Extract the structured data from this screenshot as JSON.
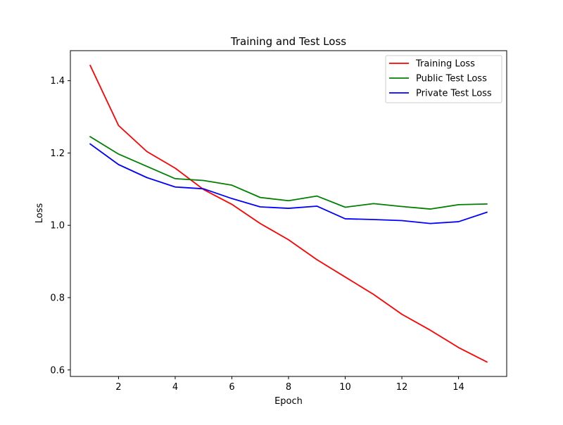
{
  "chart_data": {
    "type": "line",
    "title": "Training and Test Loss",
    "xlabel": "Epoch",
    "ylabel": "Loss",
    "x": [
      1,
      2,
      3,
      4,
      5,
      6,
      7,
      8,
      9,
      10,
      11,
      12,
      13,
      14,
      15
    ],
    "xlim": [
      0.3,
      15.7
    ],
    "ylim": [
      0.582,
      1.483
    ],
    "xticks": [
      2,
      4,
      6,
      8,
      10,
      12,
      14
    ],
    "yticks": [
      0.6,
      0.8,
      1.0,
      1.2,
      1.4
    ],
    "xtick_labels": [
      "2",
      "4",
      "6",
      "8",
      "10",
      "12",
      "14"
    ],
    "ytick_labels": [
      "0.6",
      "0.8",
      "1.0",
      "1.2",
      "1.4"
    ],
    "grid": false,
    "legend_position": "upper right",
    "series": [
      {
        "name": "Training Loss",
        "color": "#ff0000",
        "values": [
          1.442,
          1.276,
          1.204,
          1.158,
          1.099,
          1.058,
          1.005,
          0.96,
          0.905,
          0.857,
          0.809,
          0.754,
          0.71,
          0.662,
          0.622
        ]
      },
      {
        "name": "Public Test Loss",
        "color": "#008000",
        "values": [
          1.245,
          1.197,
          1.163,
          1.129,
          1.124,
          1.111,
          1.077,
          1.068,
          1.081,
          1.05,
          1.06,
          1.052,
          1.045,
          1.057,
          1.059
        ]
      },
      {
        "name": "Private Test Loss",
        "color": "#0000ff",
        "values": [
          1.225,
          1.168,
          1.132,
          1.106,
          1.101,
          1.074,
          1.051,
          1.047,
          1.053,
          1.018,
          1.016,
          1.013,
          1.005,
          1.01,
          1.036
        ]
      }
    ]
  }
}
